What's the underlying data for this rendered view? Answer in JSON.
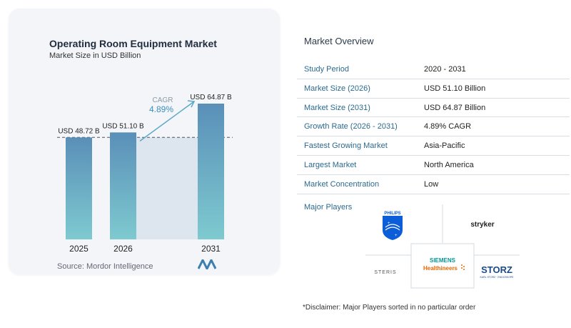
{
  "chart": {
    "title": "Operating Room Equipment Market",
    "subtitle": "Market Size in USD Billion",
    "cagr_label": "CAGR",
    "cagr_value": "4.89%",
    "source": "Source:  Mordor Intelligence"
  },
  "chart_data": {
    "type": "bar",
    "categories": [
      "2025",
      "2026",
      "2031"
    ],
    "values": [
      48.72,
      51.1,
      64.87
    ],
    "data_labels": [
      "USD 48.72 B",
      "USD 51.10 B",
      "USD 64.87 B"
    ],
    "title": "Operating Room Equipment Market",
    "subtitle": "Market Size in USD Billion",
    "xlabel": "",
    "ylabel": "",
    "ylim": [
      0,
      64.87
    ],
    "grid": false,
    "bar_color_top": "#5a8fb8",
    "bar_color_bottom": "#7ecad0"
  },
  "overview": {
    "title": "Market Overview",
    "rows": [
      {
        "label": "Study Period",
        "value": "2020 - 2031"
      },
      {
        "label": "Market Size (2026)",
        "value": "USD 51.10 Billion"
      },
      {
        "label": "Market Size (2031)",
        "value": "USD 64.87 Billion"
      },
      {
        "label": "Growth Rate (2026 - 2031)",
        "value": "4.89% CAGR"
      },
      {
        "label": "Fastest Growing Market",
        "value": "Asia-Pacific"
      },
      {
        "label": "Largest Market",
        "value": "North America"
      },
      {
        "label": "Market Concentration",
        "value": "Low"
      }
    ]
  },
  "players": {
    "title": "Major Players",
    "logos": {
      "philips": "PHILIPS",
      "stryker": "stryker",
      "siemens_line1": "SIEMENS",
      "siemens_line2": "Healthineers",
      "steris": "STERIS",
      "storz": "STORZ",
      "storz_sub": "KARL STORZ · ENDOSKOPE"
    },
    "disclaimer": "*Disclaimer: Major Players sorted in no particular order"
  },
  "colors": {
    "accent_blue": "#2b6a8e",
    "bar_blue": "#5a8fb8",
    "bar_teal": "#7ecad0",
    "arrow": "#5aa9c9",
    "siemens_orange": "#ec6602"
  }
}
